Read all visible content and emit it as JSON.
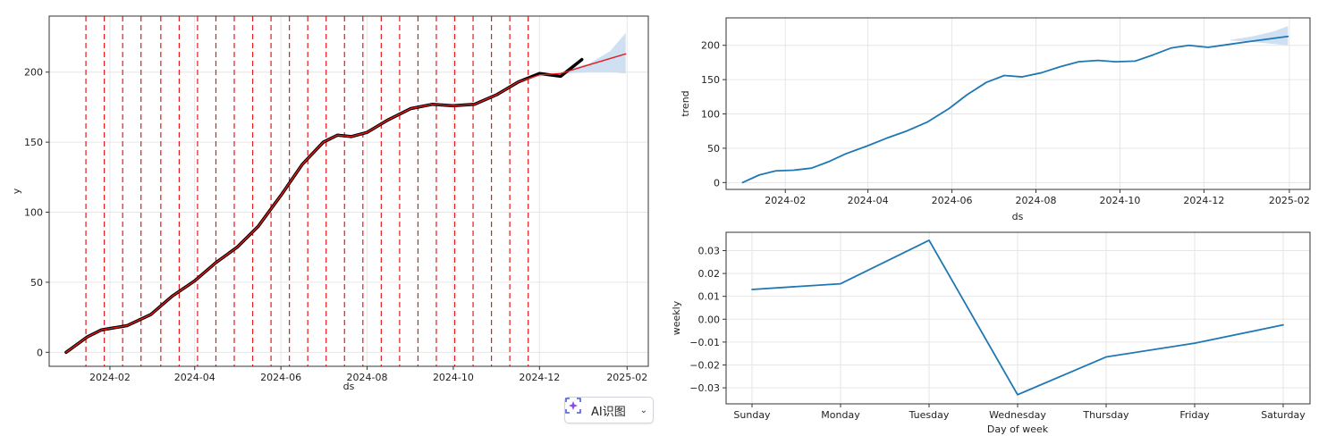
{
  "chart_data": [
    {
      "type": "line",
      "xlabel": "ds",
      "ylabel": "y",
      "x_ticks": [
        "2024-02",
        "2024-04",
        "2024-06",
        "2024-08",
        "2024-10",
        "2024-12",
        "2025-02"
      ],
      "y_ticks": [
        0,
        50,
        100,
        150,
        200
      ],
      "ylim": [
        -10,
        240
      ],
      "xlim": [
        "2023-12-20",
        "2025-02-16"
      ],
      "grid": true,
      "series": [
        {
          "role": "observed",
          "color": "#000000",
          "x": [
            "2024-01-01",
            "2024-01-16",
            "2024-01-26",
            "2024-02-13",
            "2024-03-01",
            "2024-03-16",
            "2024-04-01",
            "2024-04-16",
            "2024-05-01",
            "2024-05-16",
            "2024-06-01",
            "2024-06-16",
            "2024-07-01",
            "2024-07-11",
            "2024-07-21",
            "2024-08-01",
            "2024-08-16",
            "2024-09-01",
            "2024-09-16",
            "2024-10-01",
            "2024-10-16",
            "2024-11-01",
            "2024-11-16",
            "2024-12-01",
            "2024-12-16",
            "2024-12-31"
          ],
          "values": [
            0,
            11,
            16,
            19,
            27,
            40,
            51,
            64,
            75,
            90,
            112,
            134,
            150,
            155,
            154,
            157,
            166,
            174,
            177,
            176,
            177,
            184,
            193,
            199,
            197,
            209
          ]
        },
        {
          "role": "forecast",
          "color": "#e41a1c",
          "x": [
            "2024-01-01",
            "2024-01-16",
            "2024-01-26",
            "2024-02-13",
            "2024-03-01",
            "2024-03-16",
            "2024-04-01",
            "2024-04-16",
            "2024-05-01",
            "2024-05-16",
            "2024-06-01",
            "2024-06-16",
            "2024-07-01",
            "2024-07-11",
            "2024-07-21",
            "2024-08-01",
            "2024-08-16",
            "2024-09-01",
            "2024-09-16",
            "2024-10-01",
            "2024-10-16",
            "2024-11-01",
            "2024-11-16",
            "2024-12-01",
            "2024-12-16",
            "2025-01-01",
            "2025-01-31"
          ],
          "values": [
            0,
            11,
            16,
            19,
            27,
            40,
            51,
            64,
            75,
            90,
            112,
            134,
            150,
            155,
            154,
            157,
            166,
            174,
            177,
            176,
            177,
            184,
            193,
            198,
            199,
            204,
            213
          ]
        }
      ],
      "uncertainty_band": {
        "color": "#c6dbef",
        "x": [
          "2024-12-20",
          "2025-01-05",
          "2025-01-20",
          "2025-01-31"
        ],
        "lower": [
          199,
          200,
          200,
          199
        ],
        "upper": [
          202,
          206,
          215,
          228
        ]
      },
      "changepoints": [
        "2024-01-15",
        "2024-01-28",
        "2024-02-10",
        "2024-02-23",
        "2024-03-08",
        "2024-03-21",
        "2024-04-03",
        "2024-04-16",
        "2024-04-29",
        "2024-05-12",
        "2024-05-25",
        "2024-06-07",
        "2024-06-20",
        "2024-07-03",
        "2024-07-16",
        "2024-07-29",
        "2024-08-11",
        "2024-08-24",
        "2024-09-06",
        "2024-09-19",
        "2024-10-02",
        "2024-10-15",
        "2024-10-28",
        "2024-11-10",
        "2024-11-23"
      ],
      "changepoint_color": "#e41a1c"
    },
    {
      "type": "line",
      "xlabel": "ds",
      "ylabel": "trend",
      "x_ticks": [
        "2024-02",
        "2024-04",
        "2024-06",
        "2024-08",
        "2024-10",
        "2024-12",
        "2025-02"
      ],
      "y_ticks": [
        0,
        50,
        100,
        150,
        200
      ],
      "ylim": [
        -10,
        240
      ],
      "xlim": [
        "2023-12-20",
        "2025-02-16"
      ],
      "grid": true,
      "series": [
        {
          "color": "#1f77b4",
          "x": [
            "2024-01-01",
            "2024-01-13",
            "2024-01-25",
            "2024-02-07",
            "2024-02-20",
            "2024-03-03",
            "2024-03-16",
            "2024-03-31",
            "2024-04-15",
            "2024-04-29",
            "2024-05-14",
            "2024-05-30",
            "2024-06-12",
            "2024-06-26",
            "2024-07-09",
            "2024-07-22",
            "2024-08-05",
            "2024-08-19",
            "2024-09-01",
            "2024-09-15",
            "2024-09-28",
            "2024-10-12",
            "2024-10-25",
            "2024-11-07",
            "2024-11-20",
            "2024-12-04",
            "2024-12-18",
            "2025-01-01",
            "2025-01-31"
          ],
          "values": [
            0,
            11,
            17,
            18,
            21,
            30,
            42,
            53,
            65,
            75,
            88,
            108,
            128,
            146,
            156,
            154,
            160,
            169,
            176,
            178,
            176,
            177,
            186,
            196,
            200,
            197,
            201,
            205,
            213
          ]
        }
      ],
      "uncertainty_band": {
        "color": "#c6dbef",
        "x": [
          "2024-12-20",
          "2025-01-05",
          "2025-01-20",
          "2025-01-31"
        ],
        "lower": [
          207,
          205,
          202,
          200
        ],
        "upper": [
          208,
          213,
          220,
          228
        ]
      }
    },
    {
      "type": "line",
      "xlabel": "Day of week",
      "ylabel": "weekly",
      "categories": [
        "Sunday",
        "Monday",
        "Tuesday",
        "Wednesday",
        "Thursday",
        "Friday",
        "Saturday"
      ],
      "y_ticks": [
        "−0.03",
        "−0.02",
        "−0.01",
        "0.00",
        "0.01",
        "0.02",
        "0.03"
      ],
      "ylim": [
        -0.037,
        0.038
      ],
      "grid": true,
      "series": [
        {
          "color": "#1f77b4",
          "values": [
            0.013,
            0.0155,
            0.0345,
            -0.033,
            -0.0165,
            -0.0105,
            -0.0025
          ]
        }
      ]
    }
  ],
  "widget": {
    "label": "AI识图",
    "chevron": "⌄"
  }
}
